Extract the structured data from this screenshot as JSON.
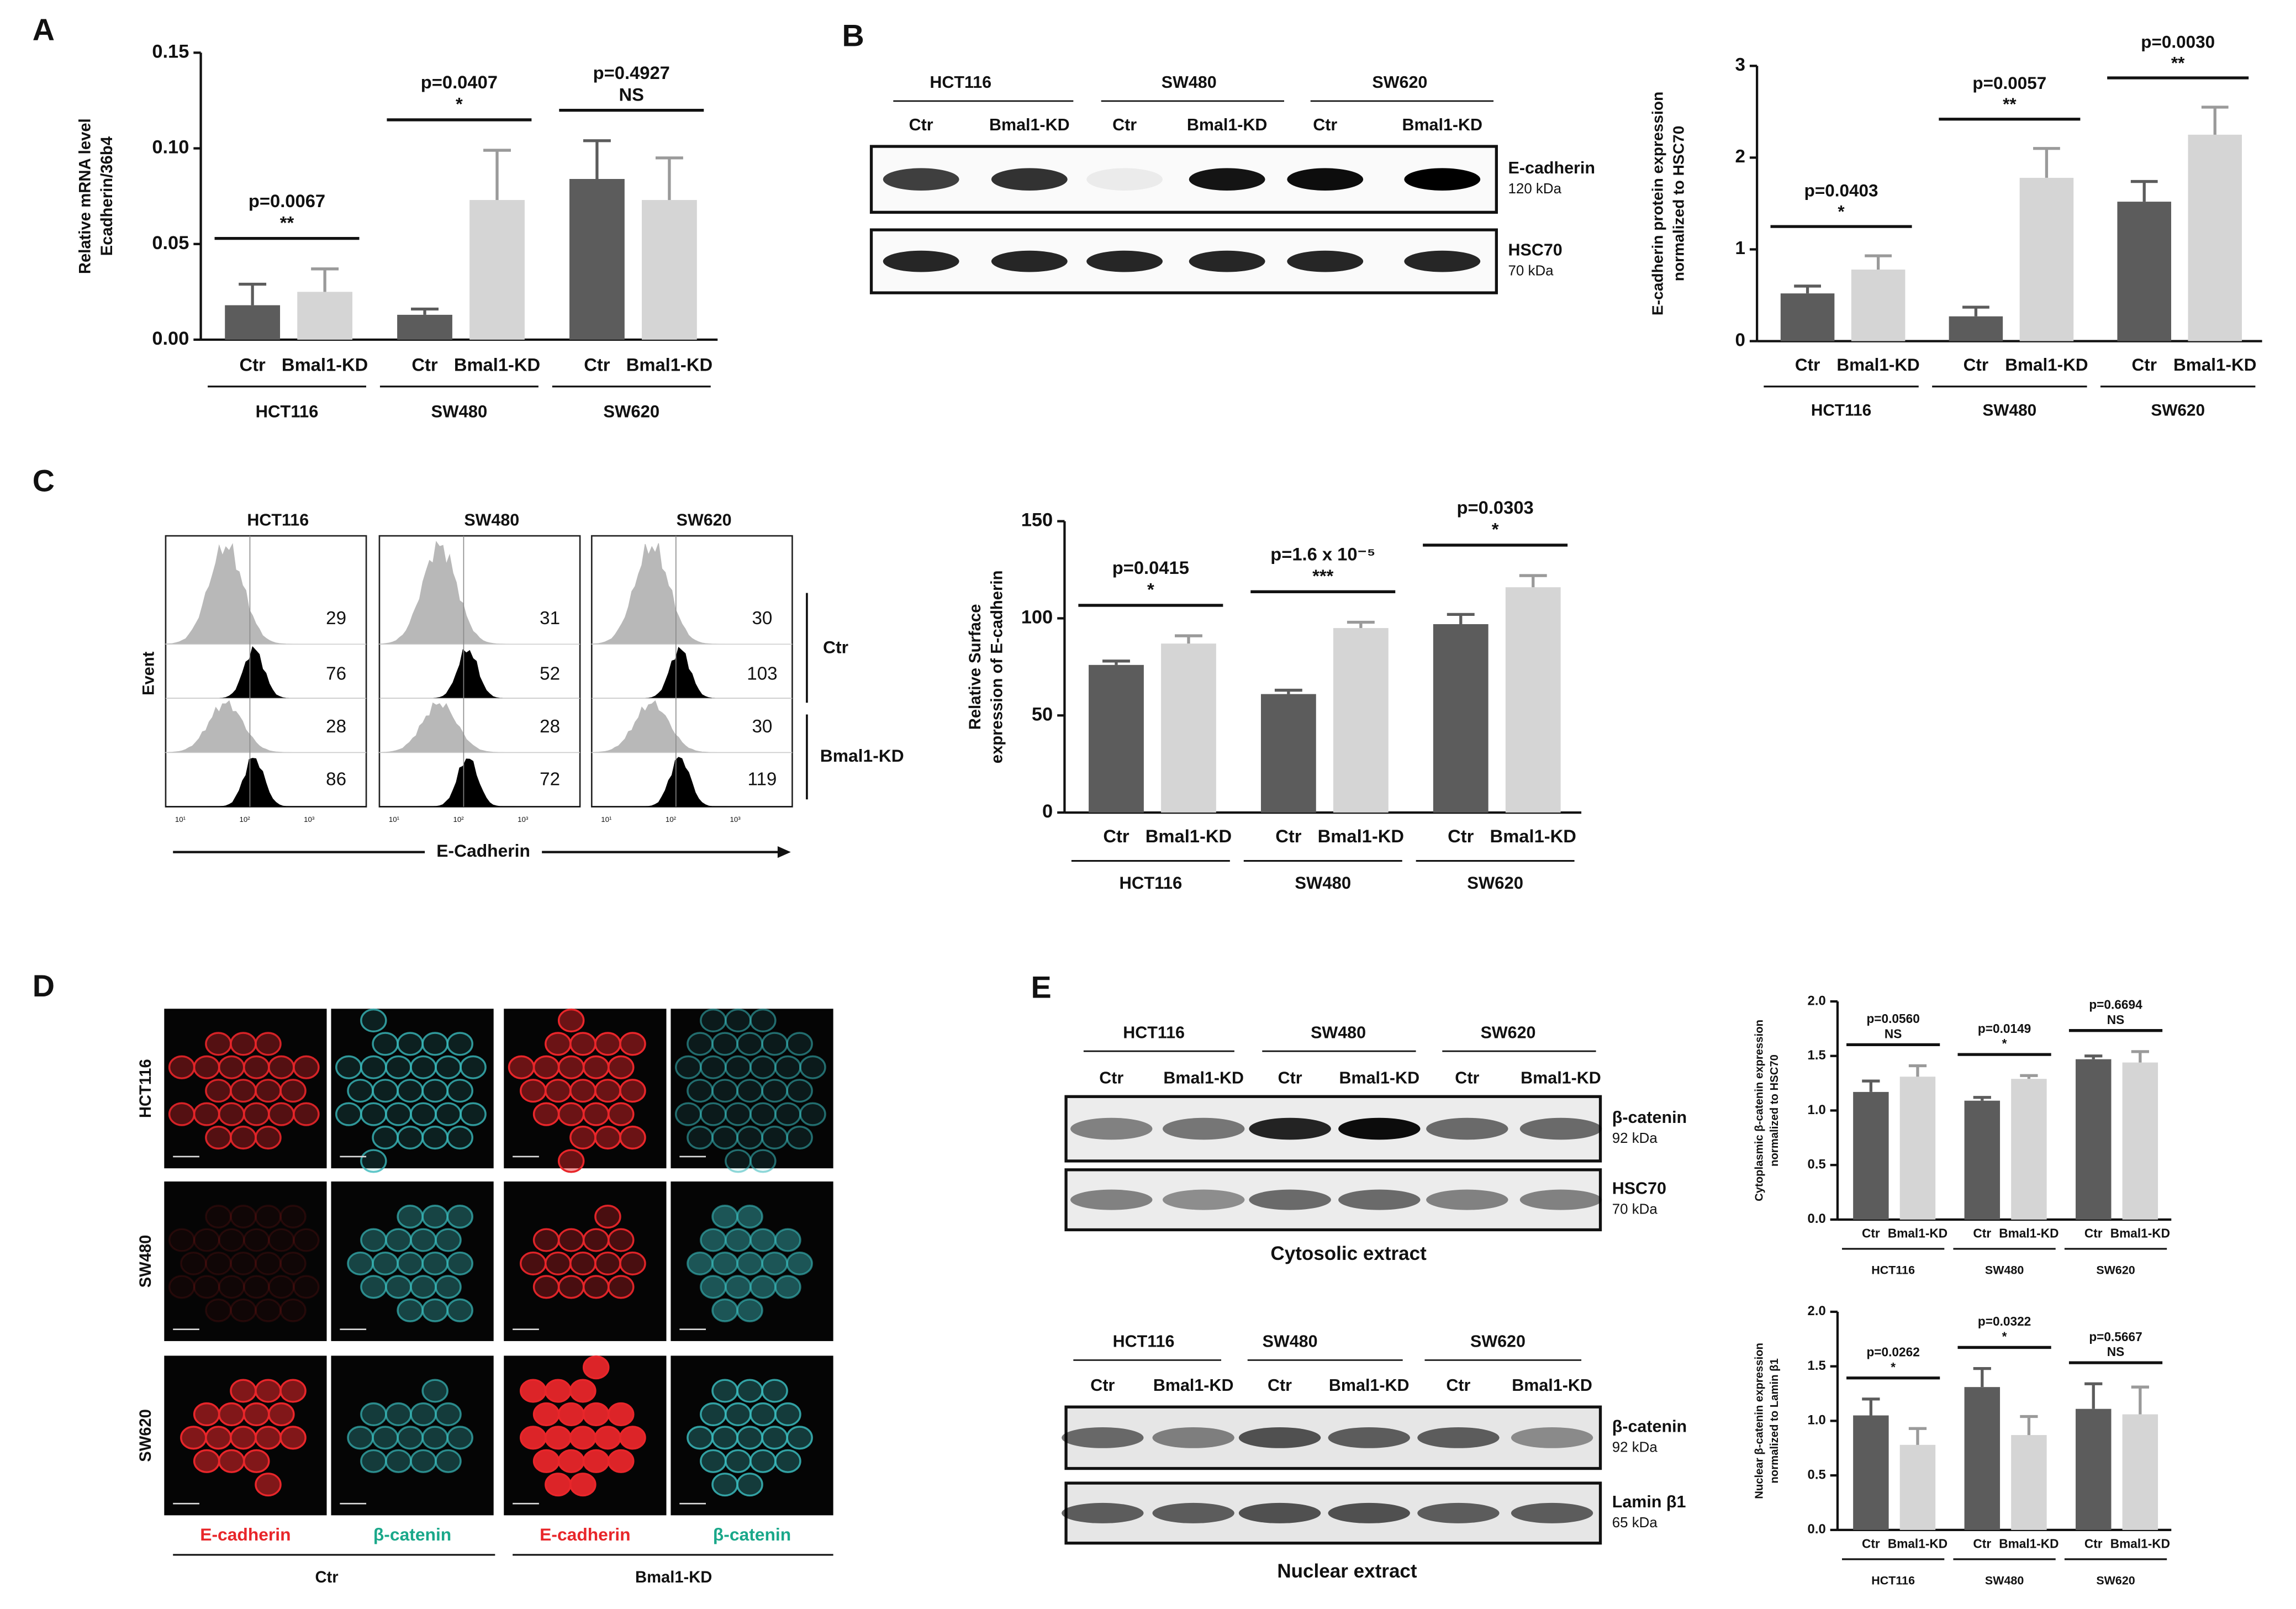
{
  "panel_labels": [
    "A",
    "B",
    "C",
    "D",
    "E"
  ],
  "chart_data": [
    {
      "type": "bar",
      "y_label": [
        "Relative mRNA level",
        "Ecadherin/36b4"
      ],
      "categories": [
        "HCT116",
        "SW480",
        "SW620"
      ],
      "series": [
        {
          "name": "Ctr",
          "color": "#5c5c5c",
          "values": [
            0.018,
            0.013,
            0.084
          ],
          "errors": [
            0.011,
            0.003,
            0.02
          ]
        },
        {
          "name": "Bmal1-KD",
          "color": "#d5d5d5",
          "values": [
            0.025,
            0.073,
            0.073
          ],
          "errors": [
            0.012,
            0.026,
            0.022
          ]
        }
      ],
      "ylim": [
        0,
        0.15
      ],
      "yticks": [
        {
          "value": 0,
          "label": "0.00"
        },
        {
          "value": 0.05,
          "label": "0.05"
        },
        {
          "value": 0.1,
          "label": "0.10"
        },
        {
          "value": 0.15,
          "label": "0.15"
        }
      ],
      "annotations": [
        {
          "p": "p=0.0067",
          "sig": "**"
        },
        {
          "p": "p=0.0407",
          "sig": "*"
        },
        {
          "p": "p=0.4927",
          "sig": "NS"
        }
      ]
    },
    {
      "type": "bar",
      "y_label": [
        "E-cadherin protein expression",
        "normalized to HSC70"
      ],
      "categories": [
        "HCT116",
        "SW480",
        "SW620"
      ],
      "series": [
        {
          "name": "Ctr",
          "color": "#5c5c5c",
          "values": [
            0.52,
            0.27,
            1.52
          ],
          "errors": [
            0.08,
            0.1,
            0.22
          ]
        },
        {
          "name": "Bmal1-KD",
          "color": "#d5d5d5",
          "values": [
            0.78,
            1.78,
            2.25
          ],
          "errors": [
            0.15,
            0.32,
            0.3
          ]
        }
      ],
      "ylim": [
        0,
        3
      ],
      "yticks": [
        0,
        1,
        2,
        3
      ],
      "annotations": [
        {
          "p": "p=0.0403",
          "sig": "*"
        },
        {
          "p": "p=0.0057",
          "sig": "**"
        },
        {
          "p": "p=0.0030",
          "sig": "**"
        }
      ]
    },
    {
      "type": "bar",
      "y_label": [
        "Relative Surface",
        "expression of E-cadherin"
      ],
      "categories": [
        "HCT116",
        "SW480",
        "SW620"
      ],
      "series": [
        {
          "name": "Ctr",
          "color": "#5c5c5c",
          "values": [
            76,
            61,
            97
          ],
          "errors": [
            2,
            2,
            5
          ]
        },
        {
          "name": "Bmal1-KD",
          "color": "#d5d5d5",
          "values": [
            87,
            95,
            116
          ],
          "errors": [
            4,
            3,
            6
          ]
        }
      ],
      "ylim": [
        0,
        150
      ],
      "yticks": [
        0,
        50,
        100,
        150
      ],
      "annotations": [
        {
          "p": "p=0.0415",
          "sig": "*"
        },
        {
          "p": "p=1.6 x 10⁻⁵",
          "sig": "***"
        },
        {
          "p": "p=0.0303",
          "sig": "*"
        }
      ]
    },
    {
      "type": "bar",
      "y_label": [
        "Cytoplasmic β-catenin expression",
        "normalized to HSC70"
      ],
      "categories": [
        "HCT116",
        "SW480",
        "SW620"
      ],
      "series": [
        {
          "name": "Ctr",
          "color": "#5c5c5c",
          "values": [
            1.17,
            1.09,
            1.47
          ],
          "errors": [
            0.1,
            0.03,
            0.03
          ]
        },
        {
          "name": "Bmal1-KD",
          "color": "#d5d5d5",
          "values": [
            1.31,
            1.29,
            1.44
          ],
          "errors": [
            0.1,
            0.03,
            0.1
          ]
        }
      ],
      "ylim": [
        0,
        2
      ],
      "yticks": [
        {
          "value": 0,
          "label": "0.0"
        },
        {
          "value": 0.5,
          "label": "0.5"
        },
        {
          "value": 1,
          "label": "1.0"
        },
        {
          "value": 1.5,
          "label": "1.5"
        },
        {
          "value": 2,
          "label": "2.0"
        }
      ],
      "annotations": [
        {
          "p": "p=0.0560",
          "sig": "NS"
        },
        {
          "p": "p=0.0149",
          "sig": "*"
        },
        {
          "p": "p=0.6694",
          "sig": "NS"
        }
      ]
    },
    {
      "type": "bar",
      "y_label": [
        "Nuclear β-catenin expression",
        "normalized to Lamin β1"
      ],
      "categories": [
        "HCT116",
        "SW480",
        "SW620"
      ],
      "series": [
        {
          "name": "Ctr",
          "color": "#5c5c5c",
          "values": [
            1.05,
            1.31,
            1.11
          ],
          "errors": [
            0.15,
            0.17,
            0.23
          ]
        },
        {
          "name": "Bmal1-KD",
          "color": "#d5d5d5",
          "values": [
            0.78,
            0.87,
            1.06
          ],
          "errors": [
            0.15,
            0.17,
            0.25
          ]
        }
      ],
      "ylim": [
        0,
        2
      ],
      "yticks": [
        {
          "value": 0,
          "label": "0.0"
        },
        {
          "value": 0.5,
          "label": "0.5"
        },
        {
          "value": 1,
          "label": "1.0"
        },
        {
          "value": 1.5,
          "label": "1.5"
        },
        {
          "value": 2,
          "label": "2.0"
        }
      ],
      "annotations": [
        {
          "p": "p=0.0262",
          "sig": "*"
        },
        {
          "p": "p=0.0322",
          "sig": "*"
        },
        {
          "p": "p=0.5667",
          "sig": "NS"
        }
      ]
    }
  ],
  "blot_b": {
    "cell_lines": [
      "HCT116",
      "SW480",
      "SW620"
    ],
    "conditions": [
      "Ctr",
      "Bmal1-KD"
    ],
    "bands": [
      {
        "name": "E-cadherin",
        "size": "120 kDa"
      },
      {
        "name": "HSC70",
        "size": "70 kDa"
      }
    ]
  },
  "flow_c": {
    "cell_lines": [
      "HCT116",
      "SW480",
      "SW620"
    ],
    "counts": [
      [
        29,
        76,
        28,
        86
      ],
      [
        31,
        52,
        28,
        72
      ],
      [
        30,
        103,
        30,
        119
      ]
    ],
    "y_label": "Event",
    "x_label": "E-Cadherin",
    "x_ticks": [
      "10¹",
      "10²",
      "10³"
    ],
    "groups": [
      "Ctr",
      "Bmal1-KD"
    ]
  },
  "microscopy_d": {
    "cell_lines": [
      "HCT116",
      "SW480",
      "SW620"
    ],
    "stains": [
      "E-cadherin",
      "β-catenin"
    ],
    "groups": [
      "Ctr",
      "Bmal1-KD"
    ]
  },
  "blot_e": [
    {
      "cell_lines": [
        "HCT116",
        "SW480",
        "SW620"
      ],
      "conditions": [
        "Ctr",
        "Bmal1-KD"
      ],
      "bands": [
        {
          "name": "β-catenin",
          "size": "92 kDa"
        },
        {
          "name": "HSC70",
          "size": "70 kDa"
        }
      ],
      "title": "Cytosolic extract"
    },
    {
      "cell_lines": [
        "HCT116",
        "SW480",
        "SW620"
      ],
      "conditions": [
        "Ctr",
        "Bmal1-KD"
      ],
      "bands": [
        {
          "name": "β-catenin",
          "size": "92 kDa"
        },
        {
          "name": "Lamin β1",
          "size": "65 kDa"
        }
      ],
      "title": "Nuclear extract"
    }
  ]
}
